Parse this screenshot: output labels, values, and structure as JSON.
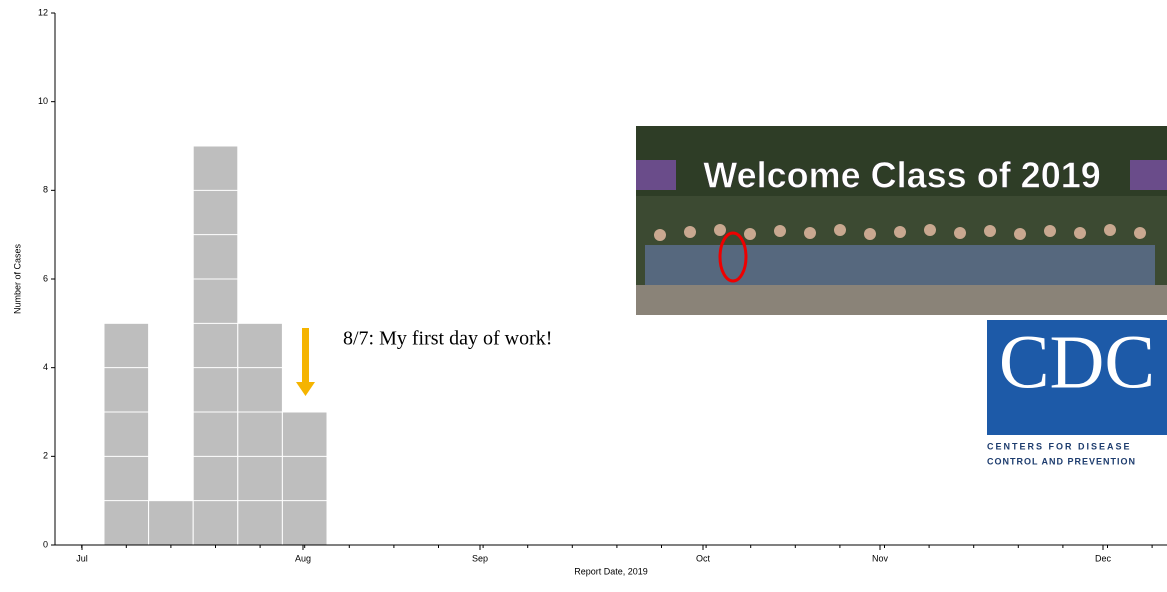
{
  "chart_data": {
    "type": "bar",
    "categories": [
      null,
      null,
      null,
      null,
      null
    ],
    "values": [
      5,
      1,
      9,
      5,
      3
    ],
    "color": "#bebebe",
    "ylim": [
      0,
      12
    ],
    "yticks": [
      0,
      2,
      4,
      6,
      8,
      10,
      12
    ],
    "y_label": "Number of Cases",
    "x_label": "Report Date, 2019",
    "x_months": [
      "Jul",
      "Aug",
      "Sep",
      "Oct",
      "Nov",
      "Dec"
    ],
    "annotation": "8/7: My first day of work!",
    "annotation_color": "#f5b400",
    "photo_banner": "Welcome Class of 2019",
    "logo": {
      "letters": "CDC",
      "line1": "Centers for Disease",
      "line2": "Control and Prevention"
    }
  }
}
